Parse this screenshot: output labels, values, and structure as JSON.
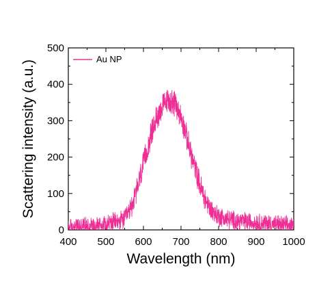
{
  "chart_data": {
    "type": "line",
    "title": "",
    "xlabel": "Wavelength (nm)",
    "ylabel": "Scattering intensity (a.u.)",
    "xlim": [
      400,
      1000
    ],
    "ylim": [
      0,
      500
    ],
    "x_ticks": [
      400,
      500,
      600,
      700,
      800,
      900,
      1000
    ],
    "y_ticks": [
      0,
      100,
      200,
      300,
      400,
      500
    ],
    "grid": false,
    "legend_position": "top-left",
    "noise_amplitude": 12,
    "series": [
      {
        "name": "Au NP",
        "color": "#EE2E94",
        "x": [
          400,
          420,
          440,
          460,
          480,
          500,
          520,
          540,
          550,
          560,
          570,
          580,
          590,
          600,
          610,
          620,
          630,
          640,
          650,
          660,
          670,
          680,
          690,
          700,
          710,
          720,
          730,
          740,
          750,
          760,
          770,
          780,
          790,
          800,
          820,
          840,
          860,
          880,
          900,
          920,
          940,
          960,
          980,
          1000
        ],
        "y": [
          6,
          8,
          10,
          12,
          14,
          17,
          20,
          24,
          30,
          45,
          70,
          100,
          140,
          180,
          220,
          260,
          295,
          320,
          338,
          350,
          355,
          350,
          335,
          310,
          275,
          235,
          195,
          160,
          125,
          95,
          72,
          55,
          45,
          38,
          30,
          26,
          24,
          22,
          20,
          18,
          17,
          14,
          12,
          10
        ]
      }
    ]
  }
}
